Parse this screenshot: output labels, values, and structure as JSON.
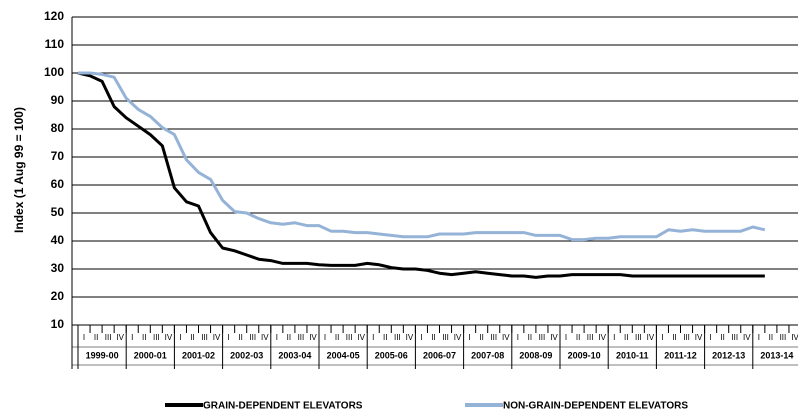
{
  "chart_data": {
    "type": "line",
    "y_label": "Index (1 Aug 99 = 100)",
    "categories": [
      "I",
      "II",
      "III",
      "IV",
      "I",
      "II",
      "III",
      "IV",
      "I",
      "II",
      "III",
      "IV",
      "I",
      "II",
      "III",
      "IV",
      "I",
      "II",
      "III",
      "IV",
      "I",
      "II",
      "III",
      "IV",
      "I",
      "II",
      "III",
      "IV",
      "I",
      "II",
      "III",
      "IV",
      "I",
      "II",
      "III",
      "IV",
      "I",
      "II",
      "III",
      "IV",
      "I",
      "II",
      "III",
      "IV",
      "I",
      "II",
      "III",
      "IV",
      "I",
      "II",
      "III",
      "IV",
      "I",
      "II",
      "III",
      "IV",
      "I",
      "II",
      "III",
      "IV"
    ],
    "groups": [
      "1999-00",
      "2000-01",
      "2001-02",
      "2002-03",
      "2003-04",
      "2004-05",
      "2005-06",
      "2006-07",
      "2007-08",
      "2008-09",
      "2009-10",
      "2010-11",
      "2011-12",
      "2012-13",
      "2013-14"
    ],
    "series": [
      {
        "name": "GRAIN-DEPENDENT ELEVATORS",
        "color": "#000000",
        "values": [
          100,
          99,
          97,
          88,
          84,
          81,
          78,
          74,
          59,
          54,
          52.5,
          43,
          37.5,
          36.5,
          35,
          33.5,
          33,
          32,
          32,
          32,
          31.5,
          31.3,
          31.3,
          31.3,
          32,
          31.5,
          30.5,
          30,
          30,
          29.5,
          28.5,
          28,
          28.5,
          29,
          28.5,
          28,
          27.5,
          27.5,
          27,
          27.5,
          27.5,
          28,
          28,
          28,
          28,
          28,
          27.5,
          27.5,
          27.5,
          27.5,
          27.5,
          27.5,
          27.5,
          27.5,
          27.5,
          27.5,
          27.5,
          27.5,
          null,
          null
        ]
      },
      {
        "name": "NON-GRAIN-DEPENDENT ELEVATORS",
        "color": "#95b3d7",
        "values": [
          100,
          100,
          99.5,
          98.5,
          91,
          87,
          84.5,
          80.5,
          78,
          69,
          64.5,
          62,
          54.5,
          50.5,
          50,
          48,
          46.5,
          46,
          46.5,
          45.5,
          45.5,
          43.5,
          43.5,
          43,
          43,
          42.5,
          42,
          41.5,
          41.5,
          41.5,
          42.5,
          42.5,
          42.5,
          43,
          43,
          43,
          43,
          43,
          42,
          42,
          42,
          40.5,
          40.5,
          41,
          41,
          41.5,
          41.5,
          41.5,
          41.5,
          44,
          43.5,
          44,
          43.5,
          43.5,
          43.5,
          43.5,
          45,
          44,
          null,
          null
        ]
      }
    ],
    "ylim": [
      10,
      120
    ],
    "yticks": [
      10,
      20,
      30,
      40,
      50,
      60,
      70,
      80,
      90,
      100,
      110,
      120
    ],
    "grid": true
  }
}
